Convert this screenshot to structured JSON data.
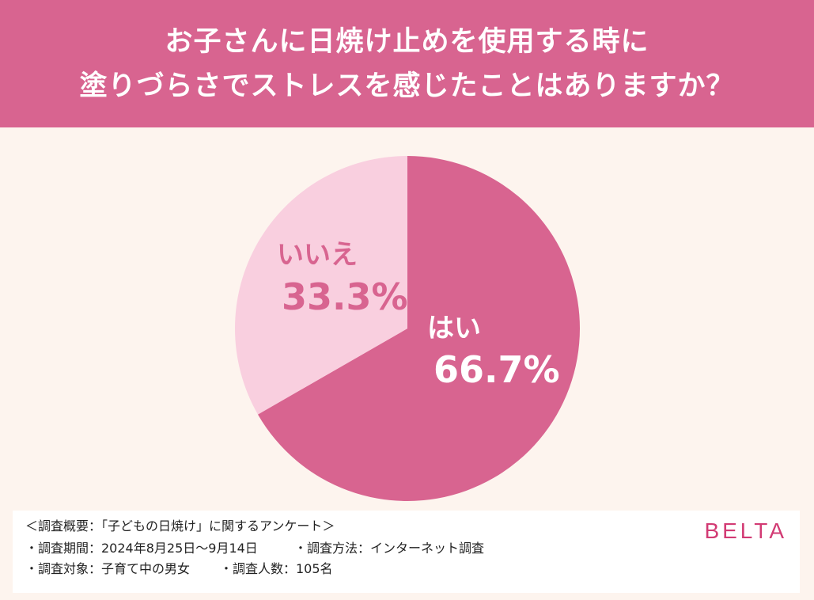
{
  "title": {
    "line1": "お子さんに日焼け止めを使用する時に",
    "line2": "塗りづらさでストレスを感じたことはありますか？"
  },
  "colors": {
    "header_bg": "#d86490",
    "background": "#fdf4ee",
    "yes_slice": "#d86490",
    "no_slice": "#f9cfdf",
    "no_label": "#d86490",
    "yes_label": "#ffffff",
    "brand": "#d23b74"
  },
  "chart_data": {
    "type": "pie",
    "slices": [
      {
        "label": "はい",
        "value": 66.7,
        "percent_text": "66.7%"
      },
      {
        "label": "いいえ",
        "value": 33.3,
        "percent_text": "33.3%"
      }
    ]
  },
  "footer": {
    "overview": "＜調査概要：「子どもの日焼け」に関するアンケート＞",
    "period": "・調査期間：2024年8月25日〜9月14日",
    "method": "・調査方法：インターネット調査",
    "target": "・調査対象：子育て中の男女",
    "count": "・調査人数：105名",
    "brand": "BELTA"
  }
}
